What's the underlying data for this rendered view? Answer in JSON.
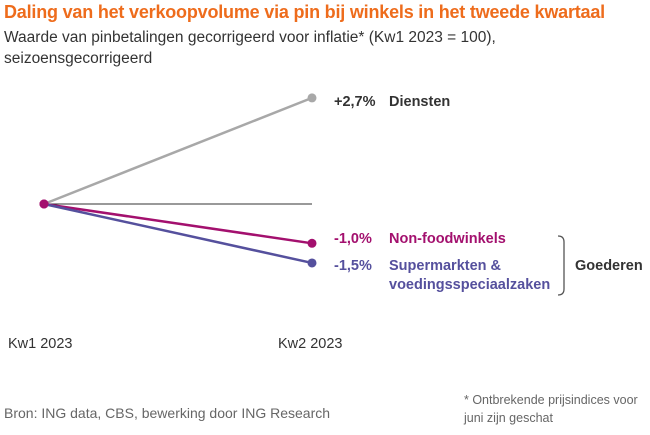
{
  "title": "Daling van het verkoopvolume via pin bij winkels in het tweede kwartaal",
  "subtitle": "Waarde van pinbetalingen gecorrigeerd voor inflatie* (Kw1 2023 = 100), seizoensgecorrigeerd",
  "source": "Bron: ING data, CBS, bewerking door ING Research",
  "footnote": "* Ontbrekende prijsindices voor juni zijn geschat",
  "chart_data": {
    "type": "line",
    "categories": [
      "Kw1 2023",
      "Kw2 2023"
    ],
    "ylim": [
      -3.0,
      3.0
    ],
    "series": [
      {
        "name": "Diensten",
        "change_label": "+2,7%",
        "values": [
          0,
          2.7
        ],
        "color": "#a8a8a8",
        "label_color": "#333333"
      },
      {
        "name": "Non-foodwinkels",
        "change_label": "-1,0%",
        "values": [
          0,
          -1.0
        ],
        "color": "#a3106e",
        "label_color": "#a3106e"
      },
      {
        "name": "Supermarkten & voedingsspeciaalzaken",
        "name_lines": [
          "Supermarkten &",
          "voedingsspeciaalzaken"
        ],
        "change_label": "-1,5%",
        "values": [
          0,
          -1.5
        ],
        "color": "#55509d",
        "label_color": "#55509d"
      }
    ],
    "group_label": "Goederen",
    "baseline_value": 0
  }
}
